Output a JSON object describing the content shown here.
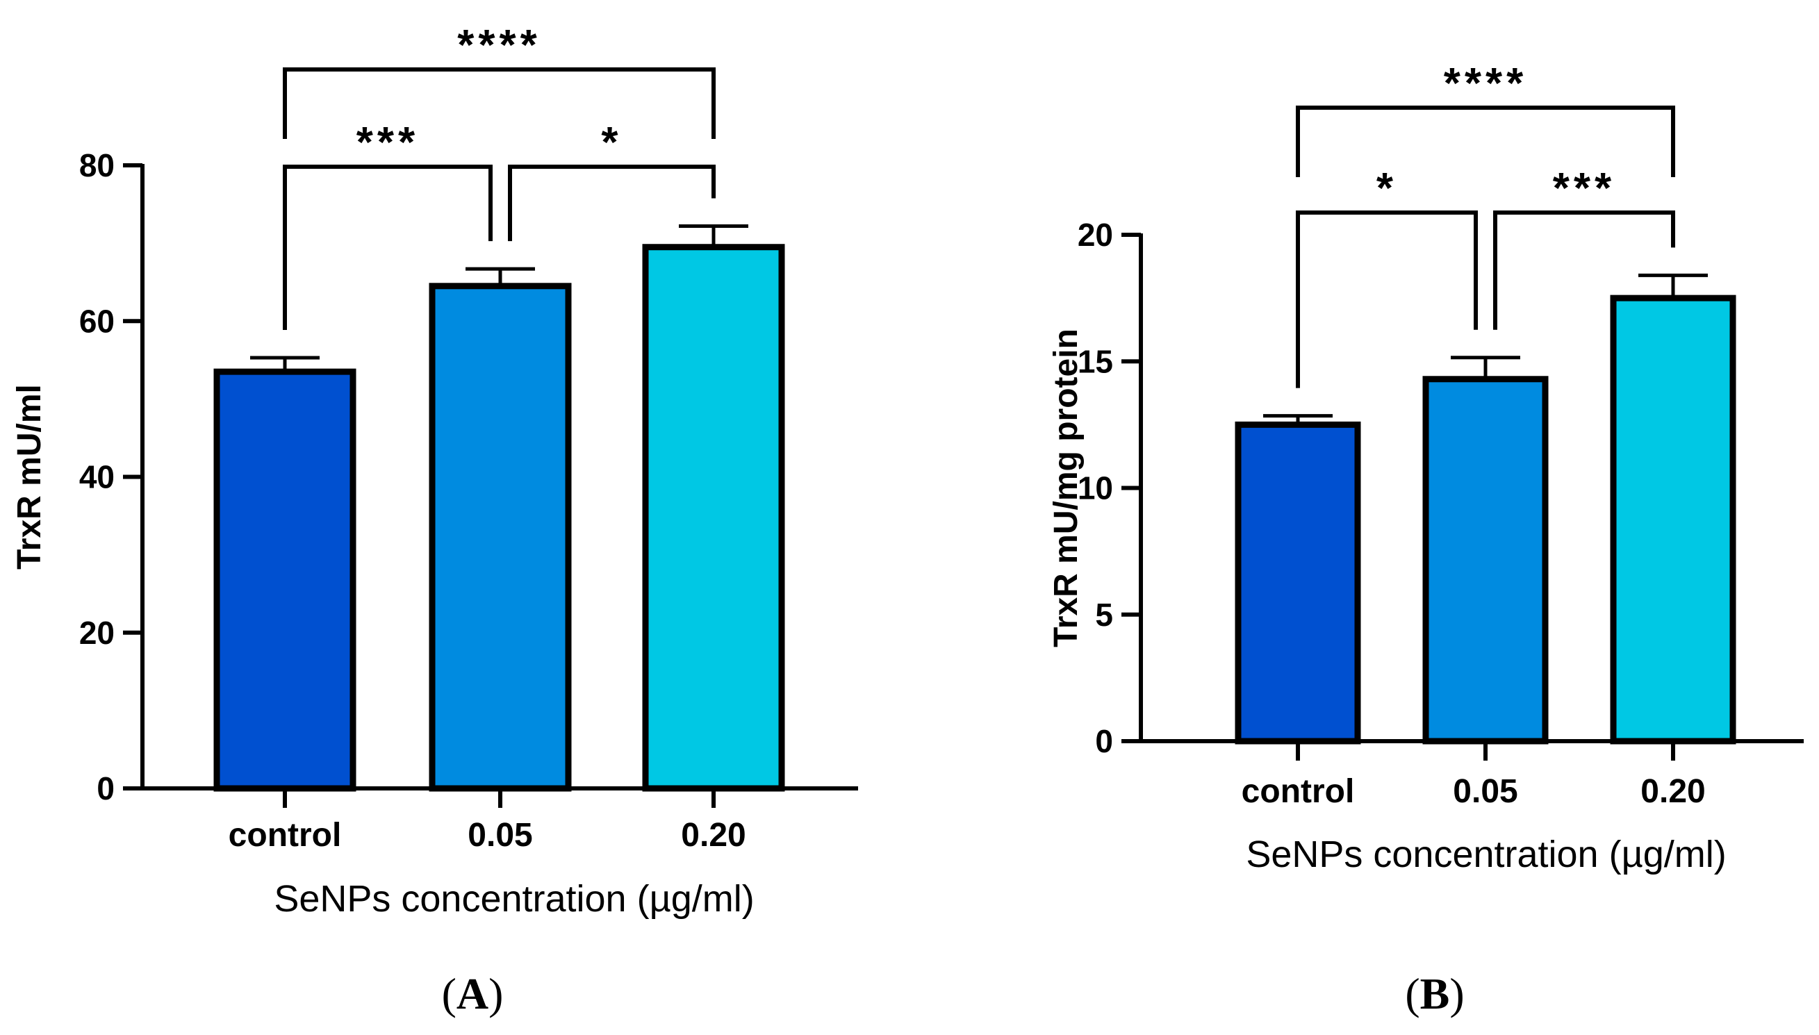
{
  "chart_data": [
    {
      "type": "bar",
      "panel_label": "A",
      "categories": [
        "control",
        "0.05",
        "0.20"
      ],
      "values": [
        53.5,
        64.5,
        69.5
      ],
      "errors": [
        1.8,
        2.2,
        2.7
      ],
      "colors": [
        "#0050d0",
        "#008be0",
        "#00c8e4"
      ],
      "xlabel": "SeNPs concentration (µg/ml)",
      "ylabel": "TrxR mU/ml",
      "ylim": [
        0,
        80
      ],
      "yticks": [
        "0",
        "20",
        "40",
        "60",
        "80"
      ],
      "significance": [
        {
          "from": 0,
          "to": 2,
          "label": "****",
          "level": 1
        },
        {
          "from": 0,
          "to": 1,
          "label": "***",
          "level": 0
        },
        {
          "from": 1,
          "to": 2,
          "label": "*",
          "level": 0
        }
      ]
    },
    {
      "type": "bar",
      "panel_label": "B",
      "categories": [
        "control",
        "0.05",
        "0.20"
      ],
      "values": [
        12.5,
        14.3,
        17.5
      ],
      "errors": [
        0.35,
        0.85,
        0.9
      ],
      "colors": [
        "#0050d0",
        "#008be0",
        "#00c8e4"
      ],
      "xlabel": "SeNPs concentration (µg/ml)",
      "ylabel": "TrxR mU/mg protein",
      "ylim": [
        0,
        20
      ],
      "yticks": [
        "0",
        "5",
        "10",
        "15",
        "20"
      ],
      "significance": [
        {
          "from": 0,
          "to": 2,
          "label": "****",
          "level": 1
        },
        {
          "from": 0,
          "to": 1,
          "label": "*",
          "level": 0
        },
        {
          "from": 1,
          "to": 2,
          "label": "***",
          "level": 0
        }
      ]
    }
  ]
}
